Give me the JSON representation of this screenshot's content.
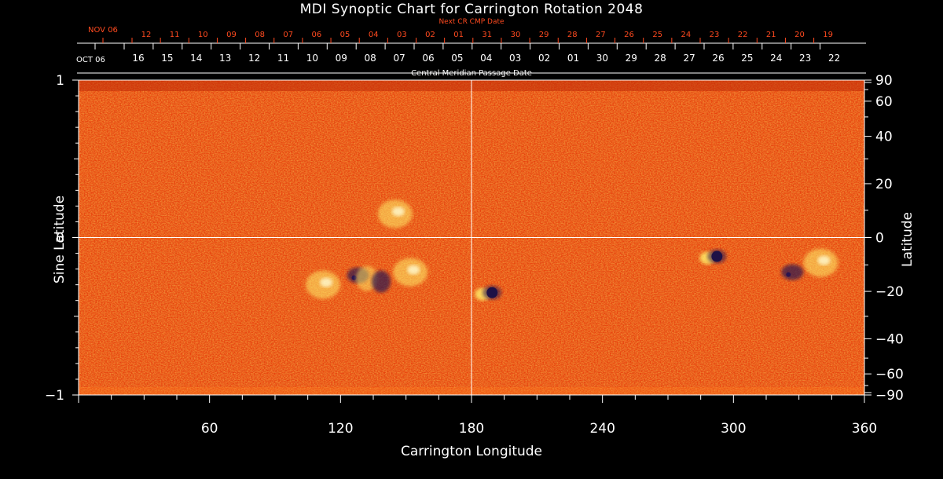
{
  "chart_data": {
    "type": "heatmap",
    "title": "MDI Synoptic Chart for Carrington Rotation 2048",
    "xlabel": "Carrington Longitude",
    "ylabel_left": "Sine Latitude",
    "ylabel_right": "Latitude",
    "xlim": [
      0,
      360
    ],
    "ylim": [
      -1,
      1
    ],
    "x_ticks": [
      "60",
      "120",
      "180",
      "240",
      "300",
      "360"
    ],
    "y_ticks_left": [
      "1",
      "0",
      "−1"
    ],
    "y_ticks_right": [
      "90",
      "60",
      "40",
      "20",
      "0",
      "−20",
      "−40",
      "−60",
      "−90"
    ],
    "top_axis_label": "Central Meridian Passage Date",
    "top_axis_start_label": "OCT 06",
    "top_axis_dates": [
      "16",
      "15",
      "14",
      "13",
      "12",
      "11",
      "10",
      "09",
      "08",
      "07",
      "06",
      "05",
      "04",
      "03",
      "02",
      "01",
      "30",
      "29",
      "28",
      "27",
      "26",
      "25",
      "24",
      "23",
      "22"
    ],
    "next_cr_label": "Next CR CMP Date",
    "next_cr_start_label": "NOV 06",
    "next_cr_dates": [
      "12",
      "11",
      "10",
      "09",
      "08",
      "07",
      "06",
      "05",
      "04",
      "03",
      "02",
      "01",
      "31",
      "30",
      "29",
      "28",
      "27",
      "26",
      "25",
      "24",
      "23",
      "22",
      "21",
      "20",
      "19"
    ],
    "features": [
      {
        "lon": 112,
        "sinlat": -0.3,
        "kind": "positive"
      },
      {
        "lon": 128,
        "sinlat": -0.24,
        "kind": "negative"
      },
      {
        "lon": 135,
        "sinlat": -0.26,
        "kind": "mixed"
      },
      {
        "lon": 152,
        "sinlat": -0.22,
        "kind": "positive"
      },
      {
        "lon": 188,
        "sinlat": -0.35,
        "kind": "sunspot-pair"
      },
      {
        "lon": 291,
        "sinlat": -0.12,
        "kind": "sunspot-pair"
      },
      {
        "lon": 327,
        "sinlat": -0.22,
        "kind": "negative"
      },
      {
        "lon": 340,
        "sinlat": -0.16,
        "kind": "positive"
      },
      {
        "lon": 145,
        "sinlat": 0.15,
        "kind": "positive"
      }
    ]
  },
  "colors": {
    "background": "#000000",
    "field_base": "#e8400c",
    "field_dark": "#c02a08",
    "field_light": "#ff7a20",
    "positive": "#fff06a",
    "negative": "#2a1450",
    "axis": "#ffffff",
    "red_text": "#ff4a1f"
  }
}
